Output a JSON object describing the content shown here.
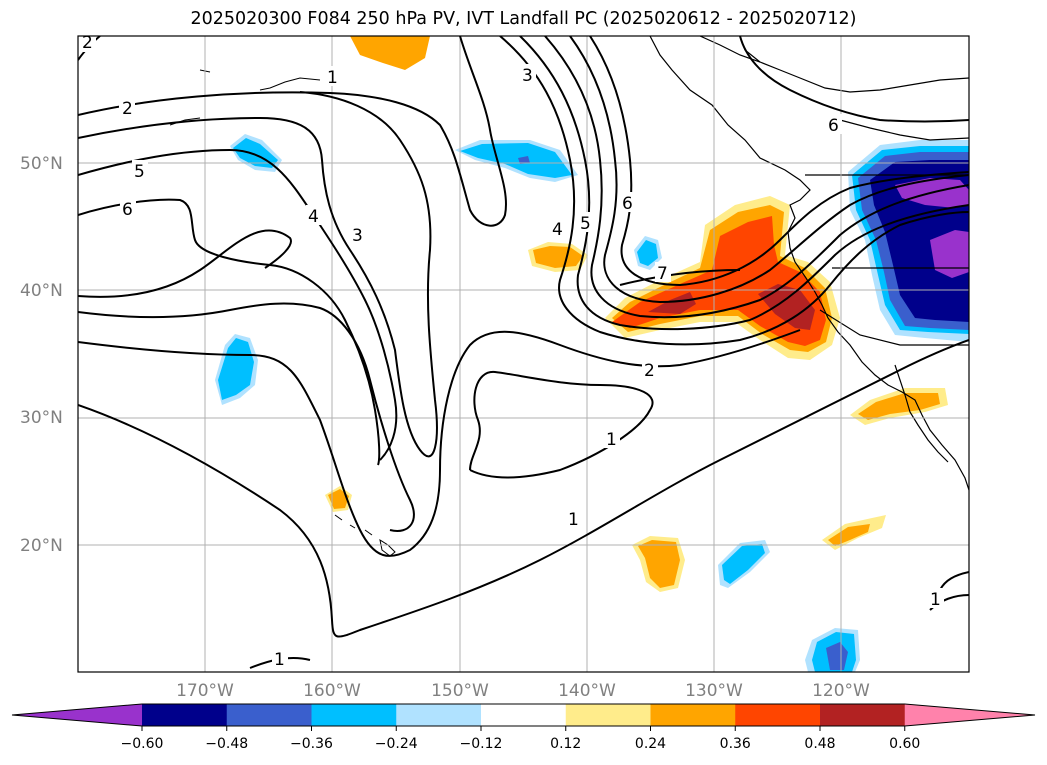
{
  "title": "2025020300 F084 250 hPa PV, IVT Landfall PC (2025020612 - 2025020712)",
  "map": {
    "lat_ticks": [
      "50°N",
      "40°N",
      "30°N",
      "20°N"
    ],
    "lon_ticks": [
      "170°W",
      "160°W",
      "150°W",
      "140°W",
      "130°W",
      "120°W"
    ],
    "lon_range": [
      -180,
      -110
    ],
    "lat_range": [
      10,
      60
    ],
    "contour_labels": [
      "2",
      "1",
      "3",
      "5",
      "6",
      "4",
      "3",
      "4",
      "5",
      "6",
      "7",
      "2",
      "1",
      "1",
      "1",
      "6",
      "1",
      "2"
    ]
  },
  "colorbar": {
    "colors": [
      "#9932CC",
      "#00008B",
      "#3A5FCD",
      "#00BFFF",
      "#B0E2FF",
      "#FFFFFF",
      "#FFEC8B",
      "#FFA500",
      "#FF4500",
      "#B22222",
      "#FF82AB"
    ],
    "tick_labels": [
      "−0.60",
      "−0.48",
      "−0.36",
      "−0.24",
      "−0.12",
      "0.12",
      "0.24",
      "0.36",
      "0.48",
      "0.60"
    ],
    "extend": "both"
  }
}
